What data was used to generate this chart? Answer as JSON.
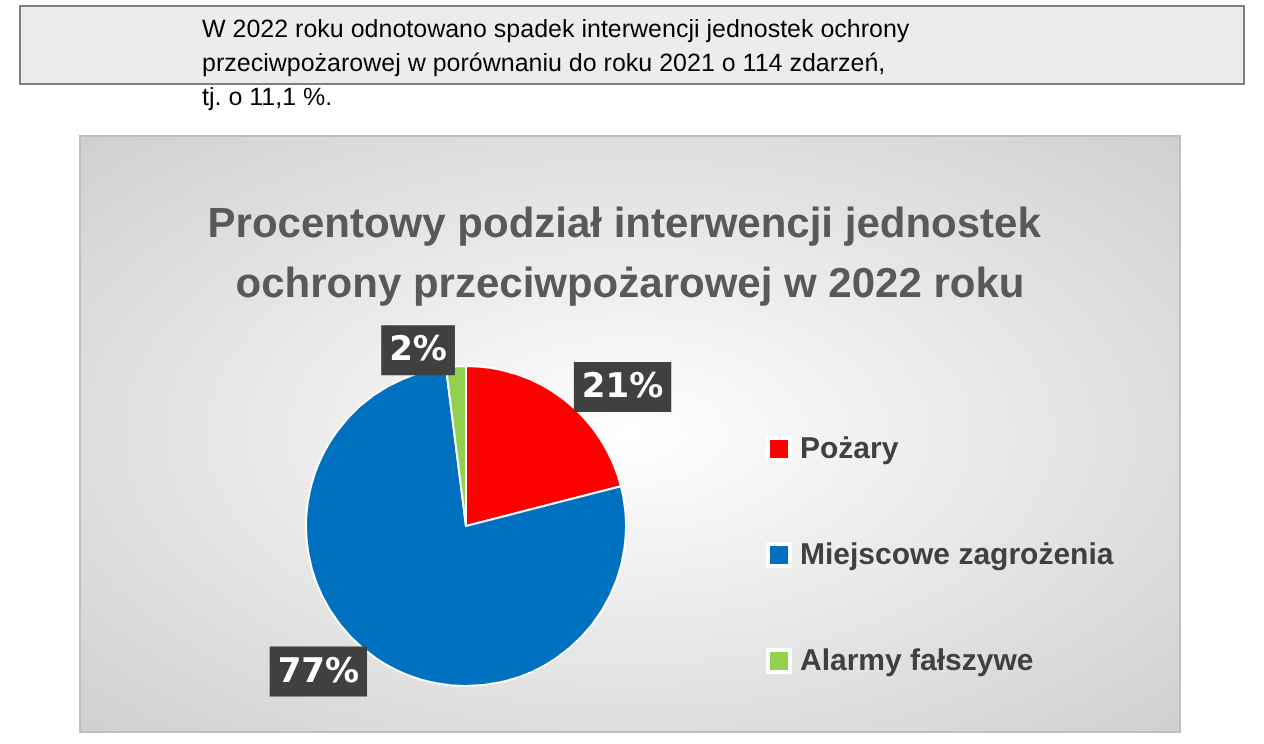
{
  "chart_data": {
    "type": "pie",
    "title": "Procentowy podział interwencji jednostek ochrony przeciwpożarowej w 2022 roku",
    "annotations": [
      "W 2022 roku odnotowano spadek interwencji jednostek ochrony przeciwpożarowej w porównaniu do roku 2021 o 114 zdarzeń, tj. o 11,1 %."
    ],
    "categories": [
      "Pożary",
      "Miejscowe zagrożenia",
      "Alarmy fałszywe"
    ],
    "values": [
      21,
      77,
      2
    ],
    "colors": [
      "#ff0000",
      "#0070c0",
      "#92d050"
    ],
    "value_labels": [
      "21%",
      "77%",
      "2%"
    ],
    "legend": "right"
  }
}
